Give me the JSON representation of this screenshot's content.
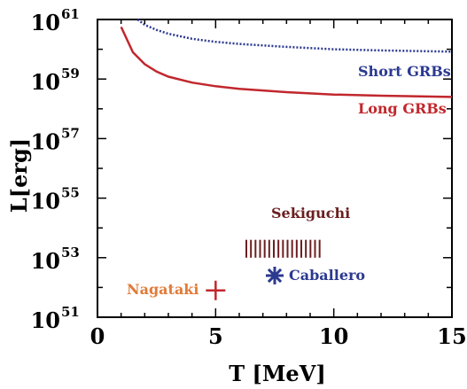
{
  "chart_data": {
    "type": "line",
    "xlabel": "T [MeV]",
    "ylabel": "L[erg]",
    "xlim": [
      0,
      15
    ],
    "ylim_log10": [
      51,
      61
    ],
    "y_scale": "log",
    "x_ticks": [
      0,
      5,
      10,
      15
    ],
    "x_tick_labels": [
      "0",
      "5",
      "10",
      "15"
    ],
    "y_ticks_log10": [
      51,
      53,
      55,
      57,
      59,
      61
    ],
    "y_tick_base": "10",
    "y_tick_exponents": [
      "51",
      "53",
      "55",
      "57",
      "59",
      "61"
    ],
    "grid": false,
    "series": [
      {
        "name": "Short GRBs",
        "style": "dotted",
        "color": "#2b3990",
        "x": [
          1.7,
          2.0,
          2.5,
          3.0,
          4.0,
          5.0,
          6.0,
          8.0,
          10.0,
          12.0,
          15.0
        ],
        "log10_y": [
          61.0,
          60.82,
          60.65,
          60.52,
          60.35,
          60.25,
          60.18,
          60.08,
          60.0,
          59.96,
          59.92
        ]
      },
      {
        "name": "Long GRBs",
        "style": "solid",
        "color": "#c1272d",
        "x": [
          1.0,
          1.5,
          2.0,
          2.5,
          3.0,
          4.0,
          5.0,
          6.0,
          8.0,
          10.0,
          12.0,
          15.0
        ],
        "log10_y": [
          60.75,
          59.9,
          59.5,
          59.25,
          59.08,
          58.88,
          58.76,
          58.67,
          58.56,
          58.48,
          58.44,
          58.4
        ]
      }
    ],
    "markers": [
      {
        "name": "Sekiguchi",
        "shape": "vertical-stripes",
        "color": "#6b1f1f",
        "x_range": [
          6.3,
          9.4
        ],
        "log10_y_range": [
          53.0,
          53.6
        ]
      },
      {
        "name": "Caballero",
        "shape": "asterisk",
        "color": "#2b3990",
        "x": 7.5,
        "log10_y": 52.4
      },
      {
        "name": "Nagataki",
        "shape": "plus",
        "color": "#c1272d",
        "x": 5.0,
        "log10_y": 51.9
      }
    ],
    "annotations": [
      {
        "text": "Short GRBs",
        "color": "#2b3990"
      },
      {
        "text": "Long GRBs",
        "color": "#c1272d"
      },
      {
        "text": "Sekiguchi",
        "color": "#6b1f1f"
      },
      {
        "text": "Caballero",
        "color": "#2b3990"
      },
      {
        "text": "Nagataki",
        "color": "#e07b39"
      }
    ]
  }
}
